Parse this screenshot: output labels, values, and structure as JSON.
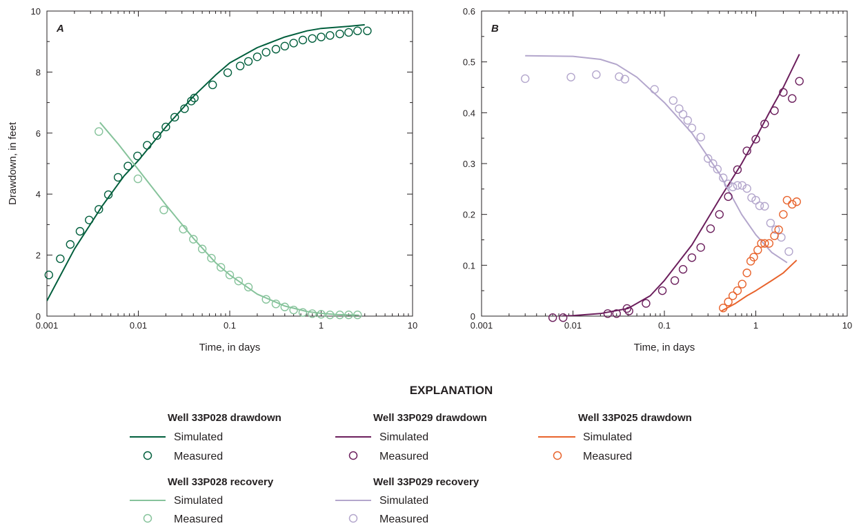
{
  "chart_data": [
    {
      "type": "scatter",
      "panel_label": "A",
      "xlabel": "Time, in days",
      "ylabel": "Drawdown, in feet",
      "xscale": "log",
      "xlim": [
        0.001,
        10
      ],
      "ylim": [
        0,
        10
      ],
      "x_ticks": [
        0.001,
        0.01,
        0.1,
        1,
        10
      ],
      "x_tick_labels": [
        "0.001",
        "0.01",
        "0.1",
        "1",
        "10"
      ],
      "y_ticks": [
        0,
        2,
        4,
        6,
        8,
        10
      ],
      "y_tick_labels": [
        "0",
        "2",
        "4",
        "6",
        "8",
        "10"
      ],
      "grid": false,
      "series": [
        {
          "name": "Well 33P028 drawdown — Simulated",
          "kind": "line",
          "color": "#005e3c",
          "x": [
            0.001,
            0.002,
            0.004,
            0.007,
            0.01,
            0.02,
            0.04,
            0.07,
            0.1,
            0.2,
            0.4,
            0.7,
            1,
            2,
            3
          ],
          "y": [
            0.5,
            2.2,
            3.6,
            4.6,
            5.1,
            6.2,
            7.2,
            7.9,
            8.3,
            8.8,
            9.15,
            9.35,
            9.43,
            9.5,
            9.55
          ]
        },
        {
          "name": "Well 33P028 drawdown — Measured",
          "kind": "points",
          "color": "#005e3c",
          "x": [
            0.00105,
            0.0014,
            0.0018,
            0.0023,
            0.0029,
            0.0037,
            0.0047,
            0.006,
            0.0077,
            0.0098,
            0.0125,
            0.016,
            0.02,
            0.025,
            0.032,
            0.038,
            0.041,
            0.065,
            0.095,
            0.13,
            0.16,
            0.2,
            0.25,
            0.32,
            0.4,
            0.5,
            0.63,
            0.8,
            1.0,
            1.25,
            1.6,
            2.0,
            2.5,
            3.2
          ],
          "y": [
            1.35,
            1.88,
            2.35,
            2.78,
            3.15,
            3.5,
            3.98,
            4.55,
            4.92,
            5.25,
            5.6,
            5.92,
            6.2,
            6.52,
            6.8,
            7.05,
            7.15,
            7.58,
            7.98,
            8.2,
            8.35,
            8.5,
            8.65,
            8.75,
            8.85,
            8.95,
            9.05,
            9.1,
            9.15,
            9.2,
            9.25,
            9.3,
            9.35,
            9.35
          ]
        },
        {
          "name": "Well 33P028 recovery — Simulated",
          "kind": "line",
          "color": "#86c39b",
          "x": [
            0.0038,
            0.006,
            0.01,
            0.02,
            0.04,
            0.07,
            0.1,
            0.2,
            0.4,
            0.7,
            1,
            1.5,
            2,
            2.6
          ],
          "y": [
            6.35,
            5.65,
            4.8,
            3.65,
            2.55,
            1.75,
            1.35,
            0.72,
            0.33,
            0.15,
            0.09,
            0.05,
            0.04,
            0.03
          ]
        },
        {
          "name": "Well 33P028 recovery — Measured",
          "kind": "points",
          "color": "#86c39b",
          "x": [
            0.0037,
            0.0099,
            0.019,
            0.031,
            0.04,
            0.05,
            0.063,
            0.08,
            0.1,
            0.125,
            0.16,
            0.25,
            0.32,
            0.4,
            0.5,
            0.63,
            0.8,
            1.0,
            1.25,
            1.6,
            2.0,
            2.5
          ],
          "y": [
            6.05,
            4.5,
            3.48,
            2.85,
            2.52,
            2.2,
            1.9,
            1.6,
            1.35,
            1.15,
            0.95,
            0.55,
            0.4,
            0.3,
            0.2,
            0.12,
            0.08,
            0.06,
            0.04,
            0.04,
            0.04,
            0.04
          ]
        }
      ]
    },
    {
      "type": "scatter",
      "panel_label": "B",
      "xlabel": "Time, in days",
      "ylabel": "",
      "xscale": "log",
      "xlim": [
        0.001,
        10
      ],
      "ylim": [
        0,
        0.6
      ],
      "x_ticks": [
        0.001,
        0.01,
        0.1,
        1,
        10
      ],
      "x_tick_labels": [
        "0.001",
        "0.01",
        "0.1",
        "1",
        "10"
      ],
      "y_ticks": [
        0,
        0.1,
        0.2,
        0.3,
        0.4,
        0.5,
        0.6
      ],
      "y_tick_labels": [
        "0",
        "0.1",
        "0.2",
        "0.3",
        "0.4",
        "0.5",
        "0.6"
      ],
      "grid": false,
      "series": [
        {
          "name": "Well 33P029 drawdown — Simulated",
          "kind": "line",
          "color": "#6b1e5c",
          "x": [
            0.0075,
            0.01,
            0.02,
            0.04,
            0.07,
            0.1,
            0.2,
            0.4,
            0.7,
            1,
            1.5,
            2,
            3
          ],
          "y": [
            0,
            0.001,
            0.005,
            0.015,
            0.04,
            0.07,
            0.14,
            0.23,
            0.3,
            0.35,
            0.41,
            0.45,
            0.515
          ]
        },
        {
          "name": "Well 33P029 drawdown — Measured",
          "kind": "points",
          "color": "#6b1e5c",
          "x": [
            0.006,
            0.0078,
            0.024,
            0.03,
            0.039,
            0.041,
            0.063,
            0.095,
            0.13,
            0.16,
            0.2,
            0.25,
            0.32,
            0.4,
            0.5,
            0.63,
            0.8,
            1.0,
            1.25,
            1.6,
            2.0,
            2.5,
            3.0
          ],
          "y": [
            -0.003,
            -0.003,
            0.005,
            0.005,
            0.015,
            0.01,
            0.025,
            0.05,
            0.07,
            0.092,
            0.115,
            0.135,
            0.172,
            0.2,
            0.235,
            0.288,
            0.325,
            0.348,
            0.378,
            0.404,
            0.44,
            0.428,
            0.462
          ]
        },
        {
          "name": "Well 33P029 recovery — Simulated",
          "kind": "line",
          "color": "#b3a6cc",
          "x": [
            0.003,
            0.01,
            0.02,
            0.03,
            0.05,
            0.1,
            0.2,
            0.4,
            0.7,
            1,
            1.5,
            2.2
          ],
          "y": [
            0.512,
            0.511,
            0.505,
            0.495,
            0.47,
            0.42,
            0.36,
            0.28,
            0.2,
            0.16,
            0.125,
            0.105
          ]
        },
        {
          "name": "Well 33P029 recovery — Measured",
          "kind": "points",
          "color": "#b3a6cc",
          "x": [
            0.003,
            0.0095,
            0.018,
            0.032,
            0.037,
            0.078,
            0.125,
            0.145,
            0.16,
            0.18,
            0.2,
            0.25,
            0.3,
            0.34,
            0.38,
            0.44,
            0.5,
            0.56,
            0.63,
            0.71,
            0.8,
            0.9,
            1.0,
            1.1,
            1.25,
            1.45,
            1.65,
            1.9,
            2.3
          ],
          "y": [
            0.467,
            0.47,
            0.475,
            0.471,
            0.466,
            0.446,
            0.424,
            0.408,
            0.397,
            0.385,
            0.37,
            0.352,
            0.31,
            0.3,
            0.289,
            0.272,
            0.26,
            0.254,
            0.257,
            0.257,
            0.251,
            0.233,
            0.228,
            0.217,
            0.216,
            0.183,
            0.17,
            0.155,
            0.127
          ]
        },
        {
          "name": "Well 33P025 drawdown — Simulated",
          "kind": "line",
          "color": "#e8632c",
          "x": [
            0.42,
            0.6,
            0.8,
            1,
            1.5,
            2,
            2.8
          ],
          "y": [
            0.01,
            0.025,
            0.04,
            0.05,
            0.07,
            0.085,
            0.11
          ]
        },
        {
          "name": "Well 33P025 drawdown — Measured",
          "kind": "points",
          "color": "#e8632c",
          "x": [
            0.44,
            0.5,
            0.56,
            0.63,
            0.71,
            0.8,
            0.88,
            0.95,
            1.05,
            1.15,
            1.25,
            1.4,
            1.6,
            1.78,
            2.0,
            2.2,
            2.5,
            2.8
          ],
          "y": [
            0.016,
            0.028,
            0.04,
            0.05,
            0.063,
            0.085,
            0.108,
            0.116,
            0.13,
            0.143,
            0.143,
            0.143,
            0.158,
            0.17,
            0.2,
            0.228,
            0.22,
            0.225
          ]
        }
      ]
    }
  ],
  "legend": {
    "heading": "EXPLANATION",
    "placement": "bottom-center",
    "groups": [
      {
        "title": "Well 33P028 drawdown",
        "color": "#005e3c",
        "items": [
          "Simulated",
          "Measured"
        ]
      },
      {
        "title": "Well 33P029 drawdown",
        "color": "#6b1e5c",
        "items": [
          "Simulated",
          "Measured"
        ]
      },
      {
        "title": "Well 33P025 drawdown",
        "color": "#e8632c",
        "items": [
          "Simulated",
          "Measured"
        ]
      },
      {
        "title": "Well 33P028 recovery",
        "color": "#86c39b",
        "items": [
          "Simulated",
          "Measured"
        ]
      },
      {
        "title": "Well 33P029 recovery",
        "color": "#b3a6cc",
        "items": [
          "Simulated",
          "Measured"
        ]
      }
    ]
  }
}
